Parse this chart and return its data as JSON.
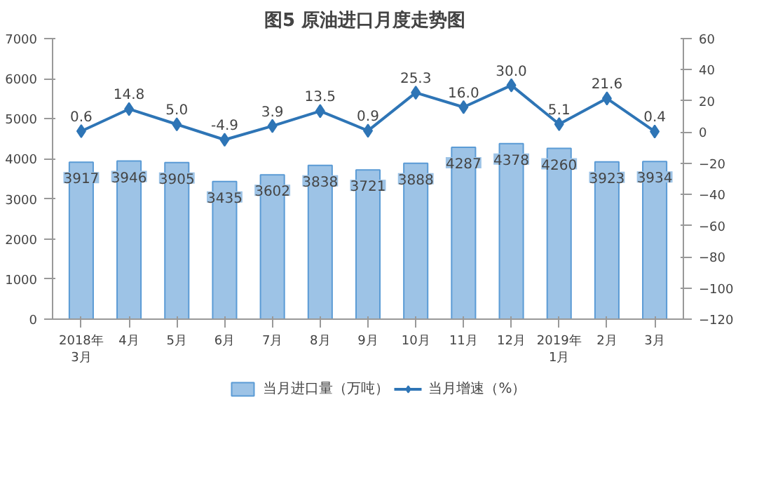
{
  "chart_data": {
    "type": "bar",
    "title": "图5  原油进口月度走势图",
    "categories": [
      "2018年\n3月",
      "4月",
      "5月",
      "6月",
      "7月",
      "8月",
      "9月",
      "10月",
      "11月",
      "12月",
      "2019年\n1月",
      "2月",
      "3月"
    ],
    "series": [
      {
        "name": "当月进口量（万吨）",
        "color": "#9dc3e6",
        "values": [
          3917,
          3946,
          3905,
          3435,
          3602,
          3838,
          3721,
          3888,
          4287,
          4378,
          4260,
          3923,
          3934
        ],
        "value_labels": [
          "3917",
          "3946",
          "3905",
          "3435",
          "3602",
          "3838",
          "3721",
          "3888",
          "4287",
          "4378",
          "4260",
          "3923",
          "3934"
        ]
      },
      {
        "name": "当月增速（%）",
        "type": "line",
        "axis": "y2",
        "color": "#2e75b6",
        "values": [
          0.6,
          14.8,
          5.0,
          -4.9,
          3.9,
          13.5,
          0.9,
          25.3,
          16.0,
          30.0,
          5.1,
          21.6,
          0.4
        ],
        "value_labels": [
          "0.6",
          "14.8",
          "5.0",
          "-4.9",
          "3.9",
          "13.5",
          "0.9",
          "25.3",
          "16.0",
          "30.0",
          "5.1",
          "21.6",
          "0.4"
        ]
      }
    ],
    "ylim": [
      0,
      7000
    ],
    "yticks": [
      0,
      1000,
      2000,
      3000,
      4000,
      5000,
      6000,
      7000
    ],
    "y2lim": [
      -120,
      60
    ],
    "y2ticks": [
      -120,
      -100,
      -80,
      -60,
      -40,
      -20,
      0,
      20,
      40,
      60
    ],
    "marker": "diamond",
    "legend": "bottom"
  }
}
